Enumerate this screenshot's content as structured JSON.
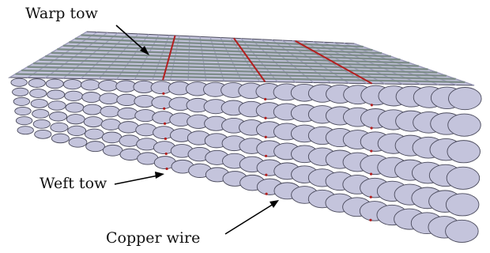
{
  "labels": {
    "warp": "Warp tow",
    "weft": "Weft tow",
    "copper": "Copper wire"
  },
  "colors": {
    "tow_fill": "#c4c4dc",
    "tow_shade": "#9c9cba",
    "tow_edge": "#4a4a5c",
    "warp_band": "#7e8d8a",
    "copper": "#b32020",
    "arrow": "#000000"
  }
}
